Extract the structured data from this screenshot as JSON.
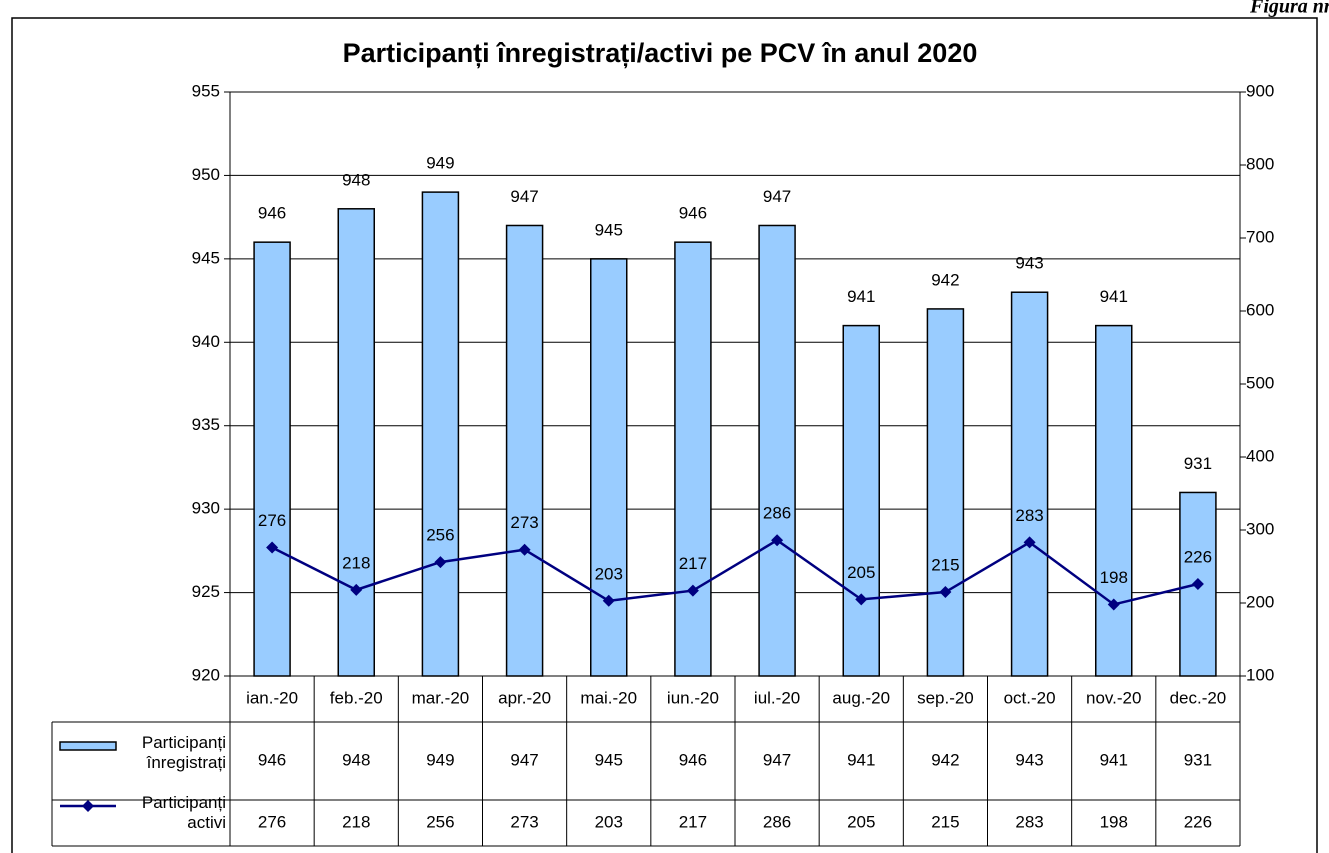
{
  "corner_caption": "Figura nr.",
  "chart_data": {
    "type": "bar+line",
    "title": "Participanți înregistrați/activi pe PCV în anul 2020",
    "categories": [
      "ian.-20",
      "feb.-20",
      "mar.-20",
      "apr.-20",
      "mai.-20",
      "iun.-20",
      "iul.-20",
      "aug.-20",
      "sep.-20",
      "oct.-20",
      "nov.-20",
      "dec.-20"
    ],
    "series": [
      {
        "name": "Participanți înregistrați",
        "type": "bar",
        "color": "#99ccff",
        "values": [
          946,
          948,
          949,
          947,
          945,
          946,
          947,
          941,
          942,
          943,
          941,
          931
        ]
      },
      {
        "name": "Participanți activi",
        "type": "line",
        "axis": "y2",
        "color": "#000080",
        "values": [
          276,
          218,
          256,
          273,
          203,
          217,
          286,
          205,
          215,
          283,
          198,
          226
        ]
      }
    ],
    "ylim": [
      920,
      955
    ],
    "yticks": [
      920,
      925,
      930,
      935,
      940,
      945,
      950,
      955
    ],
    "y2lim": [
      100,
      900
    ],
    "y2ticks": [
      100,
      200,
      300,
      400,
      500,
      600,
      700,
      800,
      900
    ],
    "grid": true,
    "data_table": true
  }
}
